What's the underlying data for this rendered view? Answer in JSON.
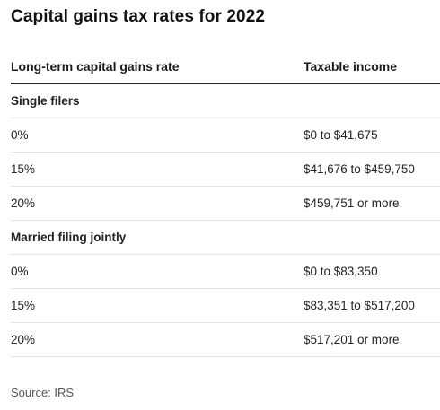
{
  "title": "Capital gains tax rates for 2022",
  "table": {
    "headers": [
      "Long-term capital gains rate",
      "Taxable income"
    ],
    "groups": [
      {
        "label": "Single filers",
        "rows": [
          [
            "0%",
            "$0 to $41,675"
          ],
          [
            "15%",
            "$41,676 to $459,750"
          ],
          [
            "20%",
            "$459,751 or more"
          ]
        ]
      },
      {
        "label": "Married filing jointly",
        "rows": [
          [
            "0%",
            "$0 to $83,350"
          ],
          [
            "15%",
            "$83,351 to $517,200"
          ],
          [
            "20%",
            "$517,201 or more"
          ]
        ]
      }
    ]
  },
  "source": "Source: IRS"
}
